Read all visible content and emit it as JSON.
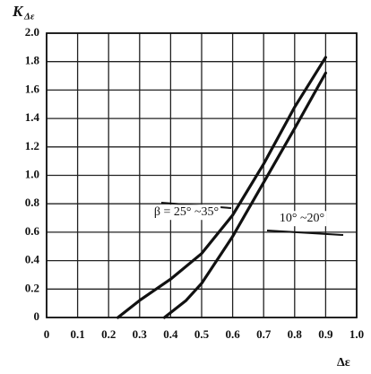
{
  "chart_data": {
    "type": "line",
    "ylabel": "K",
    "ylabel_sub": "Δε",
    "xlabel": "Δε",
    "xlim": [
      0,
      1
    ],
    "xticks": [
      0,
      0.1,
      0.2,
      0.3,
      0.4,
      0.5,
      0.6,
      0.7,
      0.8,
      0.9,
      {
        "value": 1,
        "label": "1.0"
      }
    ],
    "ylim": [
      0,
      2
    ],
    "yticks": [
      0,
      0.2,
      0.4,
      0.6,
      0.8,
      {
        "value": 1,
        "label": "1.0"
      },
      1.2,
      1.4,
      1.6,
      1.8,
      {
        "value": 2,
        "label": "2.0"
      }
    ],
    "grid": true,
    "series": [
      {
        "name": "β = 25° ~35°",
        "color": "#111111",
        "x": [
          0.23,
          0.3,
          0.4,
          0.5,
          0.6,
          0.7,
          0.8,
          0.9
        ],
        "values": [
          0,
          0.12,
          0.27,
          0.45,
          0.72,
          1.08,
          1.48,
          1.83
        ]
      },
      {
        "name": "10° ~20°",
        "color": "#111111",
        "x": [
          0.38,
          0.45,
          0.5,
          0.6,
          0.7,
          0.8,
          0.9
        ],
        "values": [
          0,
          0.12,
          0.24,
          0.57,
          0.95,
          1.33,
          1.72
        ]
      }
    ]
  }
}
